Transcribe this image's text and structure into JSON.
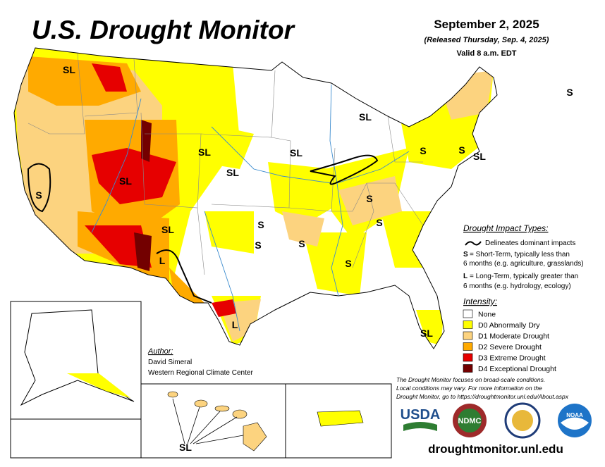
{
  "header": {
    "title": "U.S. Drought Monitor",
    "date": "September 2, 2025",
    "released": "(Released Thursday, Sep. 4, 2025)",
    "valid": "Valid 8 a.m. EDT"
  },
  "impact_types": {
    "heading": "Drought Impact Types:",
    "delineates": "Delineates dominant impacts",
    "short_key": "S",
    "short_lines": [
      "= Short-Term, typically less than",
      "6 months (e.g. agriculture, grasslands)"
    ],
    "long_key": "L",
    "long_lines": [
      "= Long-Term, typically greater than",
      "6 months (e.g. hydrology, ecology)"
    ]
  },
  "intensity": {
    "heading": "Intensity:",
    "items": [
      {
        "label": "None",
        "color": "#ffffff"
      },
      {
        "label": "D0 Abnormally Dry",
        "color": "#ffff00"
      },
      {
        "label": "D1 Moderate Drought",
        "color": "#fcd37f"
      },
      {
        "label": "D2 Severe Drought",
        "color": "#ffaa00"
      },
      {
        "label": "D3 Extreme Drought",
        "color": "#e60000"
      },
      {
        "label": "D4 Exceptional Drought",
        "color": "#730000"
      }
    ]
  },
  "author": {
    "heading": "Author:",
    "name": "David Simeral",
    "org": "Western Regional Climate Center"
  },
  "disclaimer": [
    "The Drought Monitor focuses on broad-scale conditions.",
    "Local conditions may vary. For more information on the",
    "Drought Monitor, go to https://droughtmonitor.unl.edu/About.aspx"
  ],
  "logos": [
    "USDA",
    "NDMC",
    "NOAA"
  ],
  "url": "droughtmonitor.unl.edu",
  "map_labels": [
    "SL",
    "SL",
    "S",
    "SL",
    "SL",
    "S",
    "S",
    "SL",
    "SL",
    "SL",
    "S",
    "S",
    "S",
    "S",
    "SL",
    "S",
    "S",
    "L",
    "S",
    "L",
    "SL",
    "SL"
  ]
}
